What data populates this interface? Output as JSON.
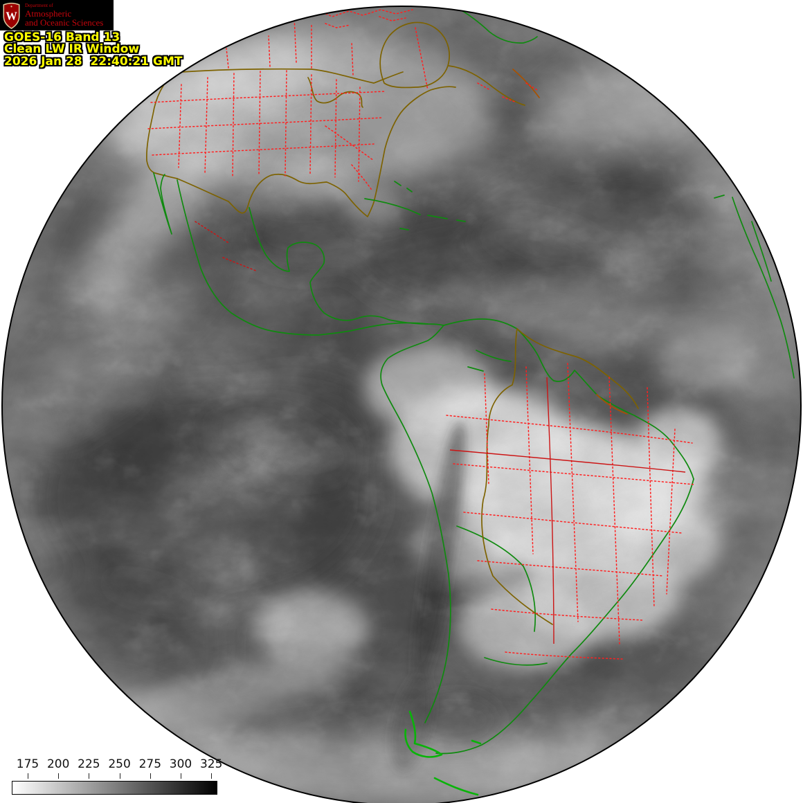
{
  "window": {
    "description": "GOES-16 full-disk infrared satellite image with map overlays",
    "background": "#ffffff"
  },
  "logo": {
    "department": "Department of",
    "line1": "Atmospheric",
    "line2": "and Oceanic Sciences",
    "crest_letter": "W",
    "background": "#000000",
    "text_color": "#c5050c"
  },
  "title": {
    "line1": "GOES-16 Band 13",
    "line2": "Clean LW IR Window",
    "line3": "2026 Jan 28  22:40:21 GMT",
    "color": "#ffff00"
  },
  "colorbar": {
    "tick_labels": [
      "175",
      "200",
      "225",
      "250",
      "275",
      "300",
      "325"
    ],
    "gradient_left": "#ffffff",
    "gradient_right": "#000000",
    "orientation": "horizontal"
  },
  "map_colors": {
    "coastline": "#0f8a0f",
    "coastline_bright": "#09b409",
    "country_olive": "#7d6200",
    "country_orange": "#a85200",
    "state_red": "#ff2020",
    "state_dark_red": "#cc1414",
    "disk_edge": "#000000",
    "space_background": "#ffffff"
  }
}
